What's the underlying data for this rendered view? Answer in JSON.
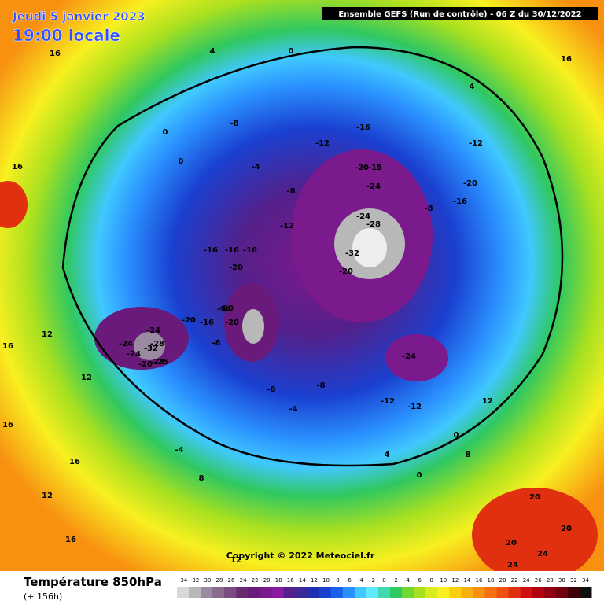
{
  "header": {
    "date": "Jeudi 5 janvier 2023",
    "time": "19:00 locale",
    "run": "Ensemble GEFS  (Run de contrôle)  -  06 Z du 30/12/2022",
    "copyright": "Copyright © 2022 Meteociel.fr"
  },
  "legend": {
    "title": "Température 850hPa",
    "lead": "(+ 156h)",
    "ticks": [
      -34,
      -32,
      -30,
      -28,
      -26,
      -24,
      -22,
      -20,
      -18,
      -16,
      -14,
      -12,
      -10,
      -8,
      -6,
      -4,
      -2,
      0,
      2,
      4,
      6,
      8,
      10,
      12,
      14,
      16,
      18,
      20,
      22,
      24,
      26,
      28,
      30,
      32,
      34
    ],
    "colors": [
      "#d8d8d8",
      "#b8b8b8",
      "#9a8aa0",
      "#8a6a8c",
      "#7a4a80",
      "#6a2a70",
      "#6a1a7a",
      "#7a1a8c",
      "#8a1aa0",
      "#55208a",
      "#3a2a9a",
      "#2030b0",
      "#1a40d0",
      "#1a60ee",
      "#2a90ff",
      "#40c8ff",
      "#60e8ff",
      "#40d8b0",
      "#30c860",
      "#70d830",
      "#a8e020",
      "#d8ec20",
      "#f8f020",
      "#f8d010",
      "#f8b010",
      "#f89010",
      "#f87010",
      "#f05010",
      "#e03010",
      "#d01010",
      "#b00010",
      "#900010",
      "#700010",
      "#400008",
      "#101010"
    ]
  },
  "map": {
    "labels": [
      "16",
      "16",
      "16",
      "12",
      "4",
      "0",
      "4",
      "0",
      "-8",
      "-12",
      "-16",
      "-15",
      "-20",
      "-24",
      "-24",
      "-28",
      "-32",
      "-20",
      "-16",
      "-20",
      "-16",
      "-12",
      "-8",
      "-4",
      "0",
      "-16",
      "-20",
      "-20",
      "-16",
      "-24",
      "-28",
      "-24",
      "-24",
      "-32",
      "-28",
      "-20",
      "-25",
      "-24",
      "-20",
      "-24",
      "-8",
      "-8",
      "-12",
      "-12",
      "-8",
      "-4",
      "0",
      "4",
      "0",
      "8",
      "12",
      "12",
      "16",
      "16",
      "20",
      "20",
      "24",
      "24",
      "20",
      "8",
      "12",
      "16",
      "-4",
      "-8",
      "-12",
      "-16",
      "-20",
      "12",
      "16"
    ]
  }
}
